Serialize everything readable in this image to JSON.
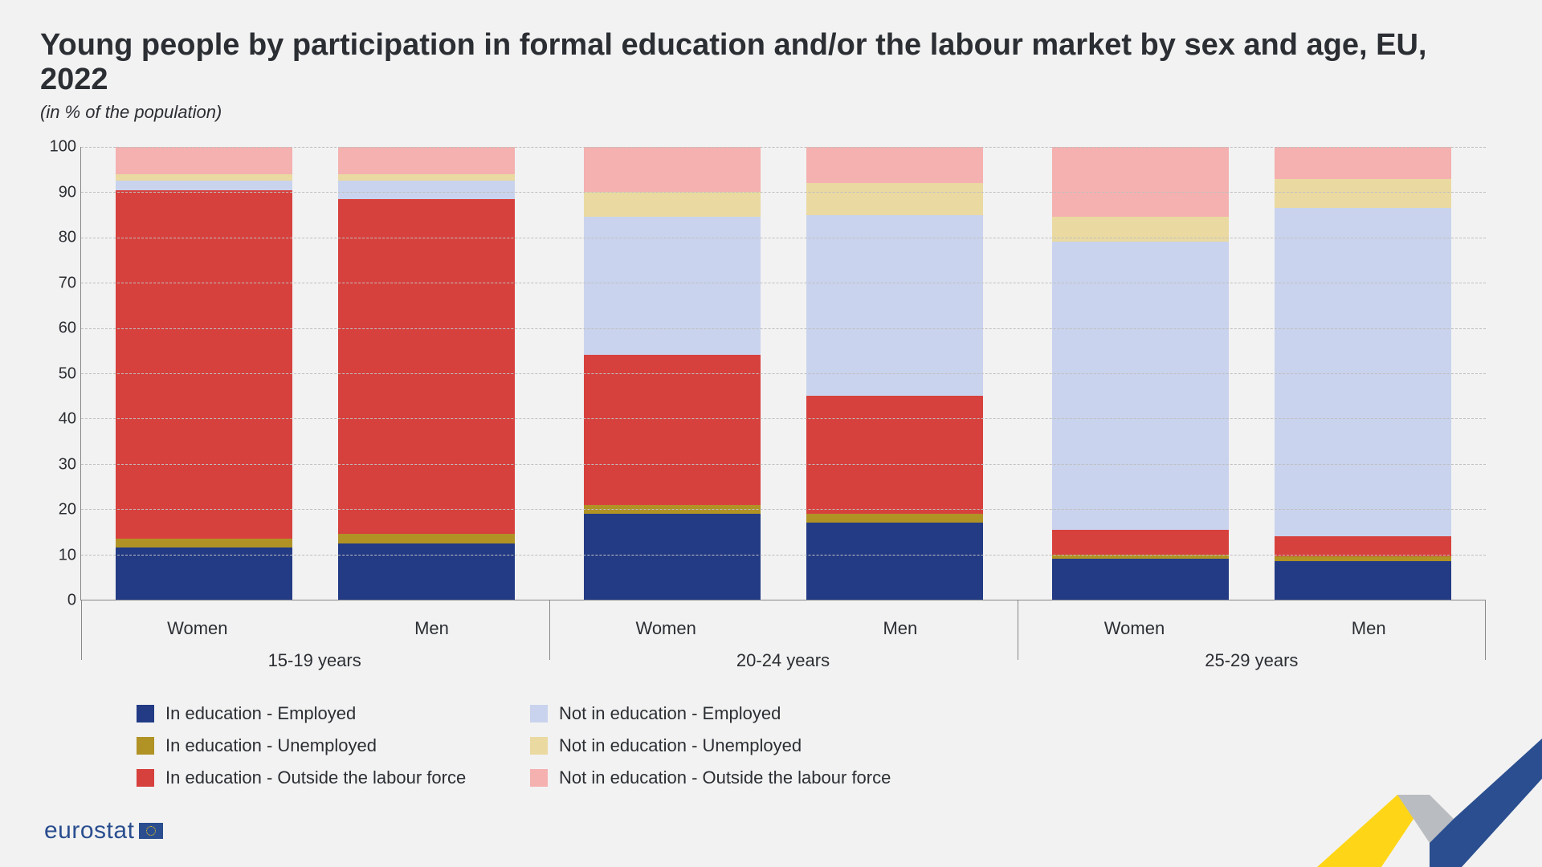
{
  "title": "Young people by participation in formal education and/or the labour market by sex and age, EU, 2022",
  "subtitle": "(in % of the population)",
  "footer_brand": "eurostat",
  "chart": {
    "type": "stacked-bar",
    "ylim": [
      0,
      100
    ],
    "ytick_step": 10,
    "yticks": [
      0,
      10,
      20,
      30,
      40,
      50,
      60,
      70,
      80,
      90,
      100
    ],
    "background_color": "#f2f2f2",
    "grid_color": "#bfbfbf",
    "axis_color": "#888888",
    "text_color": "#2b2e33",
    "title_fontsize": 38,
    "subtitle_fontsize": 22,
    "axis_fontsize": 20,
    "label_fontsize": 22,
    "bar_width_ratio": 0.82,
    "series": [
      {
        "key": "in_ed_emp",
        "label": "In education - Employed",
        "color": "#233b85"
      },
      {
        "key": "in_ed_unemp",
        "label": "In education - Unemployed",
        "color": "#b09225"
      },
      {
        "key": "in_ed_out",
        "label": "In education - Outside the labour force",
        "color": "#d7413d"
      },
      {
        "key": "not_ed_emp",
        "label": "Not in education - Employed",
        "color": "#c9d3ed"
      },
      {
        "key": "not_ed_unemp",
        "label": "Not in education - Unemployed",
        "color": "#ead9a1"
      },
      {
        "key": "not_ed_out",
        "label": "Not in education - Outside the labour force",
        "color": "#f4b1af"
      }
    ],
    "age_groups": [
      {
        "label": "15-19 years",
        "bars": [
          {
            "sex": "Women",
            "values": {
              "in_ed_emp": 11.5,
              "in_ed_unemp": 2.0,
              "in_ed_out": 77.0,
              "not_ed_emp": 2.0,
              "not_ed_unemp": 1.5,
              "not_ed_out": 6.0
            }
          },
          {
            "sex": "Men",
            "values": {
              "in_ed_emp": 12.5,
              "in_ed_unemp": 2.0,
              "in_ed_out": 74.0,
              "not_ed_emp": 4.0,
              "not_ed_unemp": 1.5,
              "not_ed_out": 6.0
            }
          }
        ]
      },
      {
        "label": "20-24 years",
        "bars": [
          {
            "sex": "Women",
            "values": {
              "in_ed_emp": 19.0,
              "in_ed_unemp": 2.0,
              "in_ed_out": 33.0,
              "not_ed_emp": 30.5,
              "not_ed_unemp": 5.5,
              "not_ed_out": 10.0
            }
          },
          {
            "sex": "Men",
            "values": {
              "in_ed_emp": 17.0,
              "in_ed_unemp": 2.0,
              "in_ed_out": 26.0,
              "not_ed_emp": 40.0,
              "not_ed_unemp": 7.0,
              "not_ed_out": 8.0
            }
          }
        ]
      },
      {
        "label": "25-29 years",
        "bars": [
          {
            "sex": "Women",
            "values": {
              "in_ed_emp": 9.0,
              "in_ed_unemp": 1.0,
              "in_ed_out": 5.5,
              "not_ed_emp": 63.5,
              "not_ed_unemp": 5.5,
              "not_ed_out": 15.5
            }
          },
          {
            "sex": "Men",
            "values": {
              "in_ed_emp": 8.5,
              "in_ed_unemp": 1.0,
              "in_ed_out": 4.5,
              "not_ed_emp": 72.5,
              "not_ed_unemp": 6.5,
              "not_ed_out": 7.0
            }
          }
        ]
      }
    ]
  },
  "decor_colors": {
    "yellow": "#ffd617",
    "gray": "#b9bcc0",
    "blue": "#2a4e8f"
  }
}
